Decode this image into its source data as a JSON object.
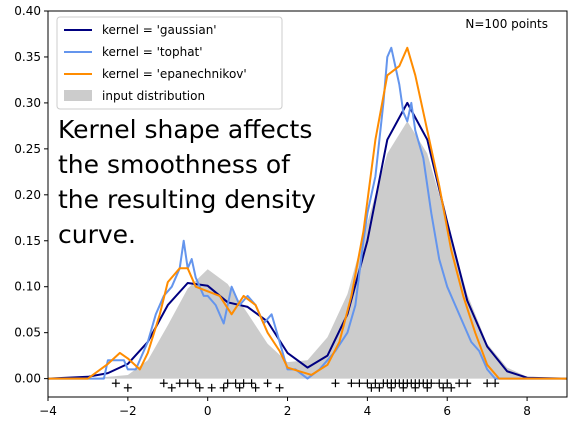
{
  "chart_data": {
    "type": "line",
    "title": "",
    "xlabel": "",
    "ylabel": "",
    "xlim": [
      -4,
      9
    ],
    "ylim": [
      -0.02,
      0.4
    ],
    "x_ticks": [
      -4,
      -2,
      0,
      2,
      4,
      6,
      8
    ],
    "y_ticks": [
      "0.00",
      "0.05",
      "0.10",
      "0.15",
      "0.20",
      "0.25",
      "0.30",
      "0.35",
      "0.40"
    ],
    "grid": false,
    "legend_position": "top-left",
    "annotation": "N=100 points",
    "note_lines": [
      "Kernel shape affects",
      "the smoothness of",
      "the resulting density",
      "curve."
    ],
    "legend": [
      {
        "label": "kernel = 'gaussian'",
        "color": "#000080",
        "kind": "line"
      },
      {
        "label": "kernel = 'tophat'",
        "color": "#6495ed",
        "kind": "line"
      },
      {
        "label": "kernel = 'epanechnikov'",
        "color": "#ff8c00",
        "kind": "line"
      },
      {
        "label": "input distribution",
        "color": "#cccccc",
        "kind": "fill"
      }
    ],
    "input_distribution": {
      "color": "#cccccc",
      "x": [
        -4.0,
        -3.0,
        -2.0,
        -1.5,
        -1.0,
        -0.5,
        0.0,
        0.5,
        1.0,
        1.5,
        2.0,
        2.5,
        3.0,
        3.5,
        4.0,
        4.5,
        5.0,
        5.5,
        6.0,
        6.5,
        7.0,
        7.5,
        8.0,
        9.0
      ],
      "y": [
        0.0,
        0.0,
        0.004,
        0.02,
        0.058,
        0.098,
        0.119,
        0.103,
        0.071,
        0.038,
        0.018,
        0.02,
        0.045,
        0.092,
        0.17,
        0.245,
        0.28,
        0.245,
        0.17,
        0.092,
        0.038,
        0.012,
        0.002,
        0.0
      ]
    },
    "series": [
      {
        "name": "kernel = 'gaussian'",
        "color": "#000080",
        "x": [
          -4.0,
          -3.0,
          -2.5,
          -2.0,
          -1.5,
          -1.0,
          -0.5,
          0.0,
          0.5,
          1.0,
          1.5,
          2.0,
          2.5,
          3.0,
          3.5,
          4.0,
          4.5,
          5.0,
          5.5,
          6.0,
          6.5,
          7.0,
          7.5,
          8.0,
          9.0
        ],
        "y": [
          0.0,
          0.002,
          0.006,
          0.016,
          0.04,
          0.08,
          0.104,
          0.101,
          0.083,
          0.078,
          0.062,
          0.028,
          0.012,
          0.025,
          0.07,
          0.15,
          0.26,
          0.3,
          0.26,
          0.17,
          0.085,
          0.035,
          0.008,
          0.001,
          0.0
        ]
      },
      {
        "name": "kernel = 'tophat'",
        "color": "#6495ed",
        "x": [
          -4.0,
          -2.6,
          -2.5,
          -2.1,
          -2.0,
          -1.8,
          -1.6,
          -1.5,
          -1.3,
          -1.1,
          -0.9,
          -0.7,
          -0.6,
          -0.5,
          -0.4,
          -0.3,
          -0.2,
          -0.1,
          0.0,
          0.2,
          0.4,
          0.6,
          0.8,
          1.0,
          1.2,
          1.4,
          1.6,
          1.8,
          2.0,
          2.2,
          2.5,
          2.8,
          3.0,
          3.2,
          3.5,
          3.7,
          3.9,
          4.0,
          4.2,
          4.4,
          4.5,
          4.6,
          4.7,
          4.8,
          4.9,
          5.0,
          5.1,
          5.2,
          5.4,
          5.6,
          5.8,
          6.0,
          6.2,
          6.4,
          6.6,
          6.8,
          7.0,
          7.2,
          7.4,
          9.0
        ],
        "y": [
          0.0,
          0.0,
          0.02,
          0.02,
          0.01,
          0.01,
          0.03,
          0.04,
          0.07,
          0.09,
          0.1,
          0.12,
          0.15,
          0.12,
          0.13,
          0.11,
          0.1,
          0.09,
          0.09,
          0.08,
          0.06,
          0.1,
          0.08,
          0.09,
          0.08,
          0.06,
          0.07,
          0.04,
          0.01,
          0.01,
          0.0,
          0.01,
          0.02,
          0.03,
          0.05,
          0.08,
          0.15,
          0.18,
          0.22,
          0.3,
          0.35,
          0.36,
          0.34,
          0.32,
          0.29,
          0.28,
          0.3,
          0.27,
          0.24,
          0.18,
          0.13,
          0.1,
          0.08,
          0.06,
          0.04,
          0.03,
          0.01,
          0.0,
          0.0,
          0.0
        ]
      },
      {
        "name": "kernel = 'epanechnikov'",
        "color": "#ff8c00",
        "x": [
          -4.0,
          -3.0,
          -2.5,
          -2.2,
          -2.0,
          -1.7,
          -1.5,
          -1.2,
          -1.0,
          -0.7,
          -0.5,
          -0.3,
          0.0,
          0.3,
          0.6,
          0.9,
          1.2,
          1.5,
          1.8,
          2.0,
          2.3,
          2.6,
          3.0,
          3.3,
          3.6,
          3.9,
          4.2,
          4.5,
          4.8,
          5.0,
          5.2,
          5.5,
          5.8,
          6.1,
          6.4,
          6.7,
          7.0,
          7.3,
          7.6,
          9.0
        ],
        "y": [
          0.0,
          0.0,
          0.016,
          0.028,
          0.022,
          0.01,
          0.028,
          0.07,
          0.105,
          0.12,
          0.12,
          0.1,
          0.095,
          0.09,
          0.07,
          0.09,
          0.08,
          0.05,
          0.03,
          0.012,
          0.008,
          0.004,
          0.015,
          0.04,
          0.09,
          0.16,
          0.26,
          0.33,
          0.34,
          0.36,
          0.33,
          0.27,
          0.21,
          0.14,
          0.09,
          0.05,
          0.015,
          0.0,
          0.0,
          0.0
        ]
      }
    ],
    "sample_points": {
      "marker": "+",
      "color": "#000000",
      "row_a_x": [
        -2.3,
        -1.1,
        -0.7,
        -0.5,
        -0.3,
        0.5,
        0.7,
        0.9,
        1.1,
        1.5,
        3.2,
        3.6,
        3.8,
        4.0,
        4.2,
        4.4,
        4.5,
        4.6,
        4.7,
        4.8,
        4.9,
        5.0,
        5.1,
        5.2,
        5.3,
        5.4,
        5.5,
        5.6,
        5.8,
        6.0,
        6.3,
        6.5,
        7.0,
        7.2
      ],
      "row_b_x": [
        -2.0,
        -0.9,
        -0.2,
        0.1,
        0.4,
        0.8,
        1.2,
        1.8,
        4.1,
        4.3,
        4.6,
        4.9,
        5.2,
        5.5,
        5.9,
        6.1
      ]
    }
  }
}
